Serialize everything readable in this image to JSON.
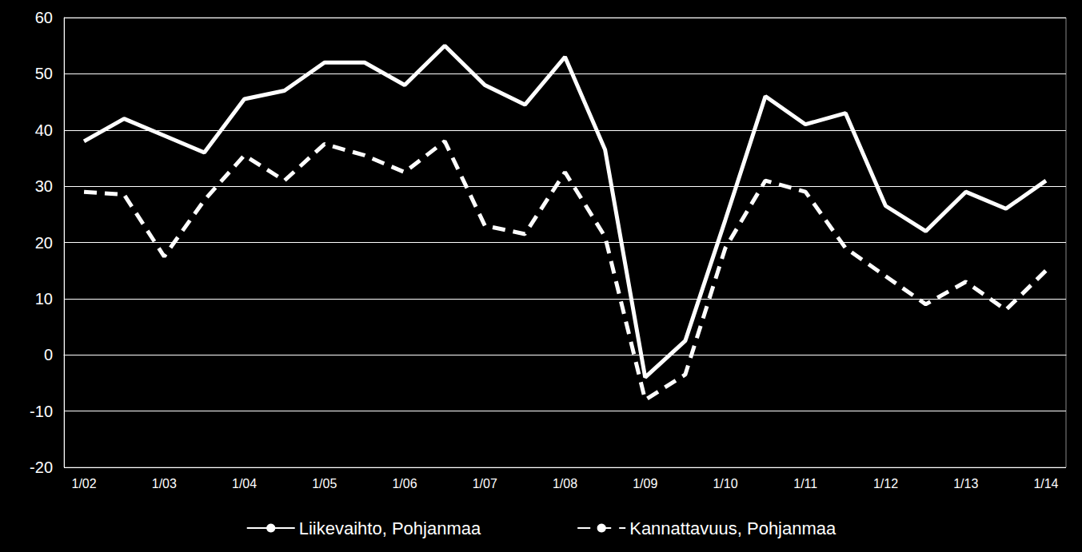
{
  "chart_data": {
    "type": "line",
    "categories": [
      "1/02",
      null,
      "1/03",
      null,
      "1/04",
      null,
      "1/05",
      null,
      "1/06",
      null,
      "1/07",
      null,
      "1/08",
      null,
      "1/09",
      null,
      "1/10",
      null,
      "1/11",
      null,
      "1/12",
      null,
      "1/13",
      null,
      "1/14"
    ],
    "series": [
      {
        "name": "Liikevaihto, Pohjanmaa",
        "color": "#ffffff",
        "line_style": "solid",
        "values": [
          38,
          42,
          39,
          36,
          45.5,
          47,
          52,
          52,
          48,
          55,
          48,
          44.5,
          53,
          36.5,
          -4,
          2.5,
          24,
          46,
          41,
          43,
          26.5,
          22,
          29,
          26,
          31
        ]
      },
      {
        "name": "Kannattavuus, Pohjanmaa",
        "color": "#ffffff",
        "line_style": "dashed",
        "values": [
          29,
          28.5,
          17.5,
          27.5,
          35.5,
          31,
          37.5,
          35.5,
          32.5,
          38,
          23,
          21.5,
          32.5,
          21,
          -8,
          -3.5,
          19,
          31,
          29,
          19,
          14,
          9,
          13,
          8,
          15
        ]
      }
    ],
    "ylim": [
      -20,
      60
    ],
    "yticks": [
      -20,
      -10,
      0,
      10,
      20,
      30,
      40,
      50,
      60
    ],
    "grid": true,
    "legend": "bottom"
  }
}
